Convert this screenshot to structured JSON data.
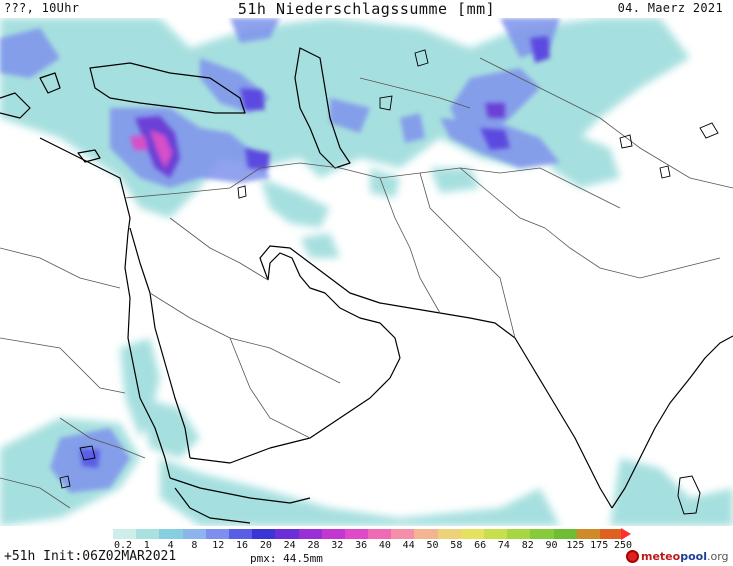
{
  "header": {
    "left": "???, 10Uhr",
    "title": "51h Niederschlagssumme [mm]",
    "date": "04. Maerz 2021"
  },
  "legend": {
    "ticks": [
      "0.2",
      "1",
      "4",
      "8",
      "12",
      "16",
      "20",
      "24",
      "28",
      "32",
      "36",
      "40",
      "44",
      "50",
      "58",
      "66",
      "74",
      "82",
      "90",
      "125",
      "175",
      "250"
    ],
    "colors": [
      "#cdeee9",
      "#a8e1e0",
      "#86cfe0",
      "#8bb5ec",
      "#7f8ff0",
      "#5a5de6",
      "#3b34d6",
      "#6c2ed8",
      "#9a2fd9",
      "#c237cf",
      "#e04ac6",
      "#f06ab3",
      "#f48fa8",
      "#f2b58f",
      "#eed27a",
      "#e6e25e",
      "#c8df4c",
      "#a6d640",
      "#86cb3a",
      "#6dbd35",
      "#d08a2a",
      "#e06020"
    ],
    "arrow_color": "#ff3030"
  },
  "footer": {
    "init": "+51h Init:06Z02MAR2021",
    "pmx": "pmx: 44.5mm"
  },
  "brand": {
    "meteo": "meteo",
    "pool": "pool",
    "org": ".org"
  }
}
